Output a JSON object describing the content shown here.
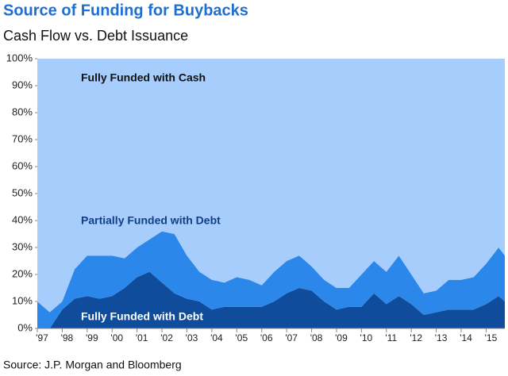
{
  "chart_data": {
    "type": "stacked-area",
    "title": "Source of Funding for Buybacks",
    "subtitle": "Cash Flow vs. Debt Issuance",
    "source": "Source: J.P. Morgan and Bloomberg",
    "x": [
      1997,
      1997.5,
      1998,
      1998.5,
      1999,
      1999.5,
      2000,
      2000.5,
      2001,
      2001.5,
      2002,
      2002.5,
      2003,
      2003.5,
      2004,
      2004.5,
      2005,
      2005.5,
      2006,
      2006.5,
      2007,
      2007.5,
      2008,
      2008.5,
      2009,
      2009.5,
      2010,
      2010.5,
      2011,
      2011.5,
      2012,
      2012.5,
      2013,
      2013.5,
      2014,
      2014.5,
      2015,
      2015.5,
      2015.75
    ],
    "series": [
      {
        "name": "Fully Funded with Debt",
        "color": "#0f4d9c",
        "values": [
          0,
          0,
          7,
          11,
          12,
          11,
          12,
          15,
          19,
          21,
          17,
          13,
          11,
          10,
          7,
          8,
          8,
          8,
          8,
          10,
          13,
          15,
          14,
          10,
          7,
          8,
          8,
          13,
          9,
          12,
          9,
          5,
          6,
          7,
          7,
          7,
          9,
          12,
          10
        ]
      },
      {
        "name": "Partially Funded with Debt",
        "color": "#2b87ea",
        "values": [
          10,
          6,
          3,
          11,
          15,
          16,
          15,
          11,
          11,
          12,
          19,
          22,
          16,
          11,
          11,
          9,
          11,
          10,
          8,
          11,
          12,
          12,
          9,
          8,
          8,
          7,
          12,
          12,
          12,
          15,
          11,
          8,
          8,
          11,
          11,
          12,
          15,
          18,
          17
        ]
      },
      {
        "name": "Fully Funded with Cash",
        "color": "#a6cdfb",
        "values": [
          90,
          94,
          90,
          78,
          73,
          73,
          73,
          74,
          70,
          67,
          64,
          65,
          73,
          79,
          82,
          83,
          81,
          82,
          84,
          79,
          75,
          73,
          77,
          82,
          85,
          85,
          80,
          75,
          79,
          73,
          80,
          87,
          86,
          82,
          82,
          81,
          76,
          70,
          73
        ]
      }
    ],
    "xlim": [
      1997,
      2015.75
    ],
    "xticks": [
      {
        "value": 1997,
        "label": "'97"
      },
      {
        "value": 1998,
        "label": "'98"
      },
      {
        "value": 1999,
        "label": "'99"
      },
      {
        "value": 2000,
        "label": "'00"
      },
      {
        "value": 2001,
        "label": "'01"
      },
      {
        "value": 2002,
        "label": "'02"
      },
      {
        "value": 2003,
        "label": "'03"
      },
      {
        "value": 2004,
        "label": "'04"
      },
      {
        "value": 2005,
        "label": "'05"
      },
      {
        "value": 2006,
        "label": "'06"
      },
      {
        "value": 2007,
        "label": "'07"
      },
      {
        "value": 2008,
        "label": "'08"
      },
      {
        "value": 2009,
        "label": "'09"
      },
      {
        "value": 2010,
        "label": "'10"
      },
      {
        "value": 2011,
        "label": "'11"
      },
      {
        "value": 2012,
        "label": "'12"
      },
      {
        "value": 2013,
        "label": "'13"
      },
      {
        "value": 2014,
        "label": "'14"
      },
      {
        "value": 2015,
        "label": "'15"
      }
    ],
    "ylim": [
      0,
      100
    ],
    "yticks": [
      {
        "value": 0,
        "label": "0%"
      },
      {
        "value": 10,
        "label": "10%"
      },
      {
        "value": 20,
        "label": "20%"
      },
      {
        "value": 30,
        "label": "30%"
      },
      {
        "value": 40,
        "label": "40%"
      },
      {
        "value": 50,
        "label": "50%"
      },
      {
        "value": 60,
        "label": "60%"
      },
      {
        "value": 70,
        "label": "70%"
      },
      {
        "value": 80,
        "label": "80%"
      },
      {
        "value": 90,
        "label": "90%"
      },
      {
        "value": 100,
        "label": "100%"
      }
    ]
  }
}
